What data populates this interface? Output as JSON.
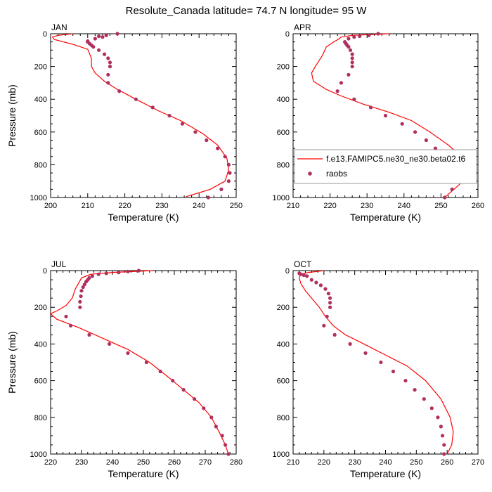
{
  "title": "Resolute_Canada  latitude= 74.7 N longitude= 95 W",
  "colors": {
    "model": "#ff0000",
    "obs": "#b03060"
  },
  "chart_data": [
    {
      "type": "line",
      "panel_label": "JAN",
      "xlabel": "Temperature (K)",
      "ylabel": "Pressure (mb)",
      "xlim": [
        200,
        250
      ],
      "xticks": [
        200,
        210,
        220,
        230,
        240,
        250
      ],
      "ylim": [
        0,
        1000
      ],
      "yticks": [
        0,
        200,
        400,
        600,
        800,
        1000
      ],
      "y_reversed": true,
      "series": [
        {
          "type": "line",
          "points": [
            [
              206,
              0
            ],
            [
              202,
              10
            ],
            [
              200.5,
              20
            ],
            [
              201,
              35
            ],
            [
              206,
              65
            ],
            [
              210,
              95
            ],
            [
              211,
              150
            ],
            [
              211,
              200
            ],
            [
              212,
              240
            ],
            [
              214.5,
              290
            ],
            [
              218,
              340
            ],
            [
              223,
              400
            ],
            [
              229,
              470
            ],
            [
              235,
              530
            ],
            [
              241,
              610
            ],
            [
              245,
              680
            ],
            [
              247.5,
              760
            ],
            [
              248,
              830
            ],
            [
              247,
              900
            ],
            [
              243,
              950
            ],
            [
              236.5,
              995
            ]
          ]
        },
        {
          "type": "scatter",
          "points": [
            [
              218,
              0
            ],
            [
              215,
              10
            ],
            [
              213,
              15
            ],
            [
              214,
              20
            ],
            [
              212,
              30
            ],
            [
              210,
              50
            ],
            [
              210,
              45
            ],
            [
              210.5,
              60
            ],
            [
              211,
              70
            ],
            [
              211.5,
              80
            ],
            [
              213,
              100
            ],
            [
              214.5,
              125
            ],
            [
              215.5,
              150
            ],
            [
              216,
              175
            ],
            [
              216,
              200
            ],
            [
              215.5,
              250
            ],
            [
              215.5,
              300
            ],
            [
              218.5,
              350
            ],
            [
              223,
              400
            ],
            [
              227.5,
              450
            ],
            [
              232,
              500
            ],
            [
              235.5,
              550
            ],
            [
              239,
              600
            ],
            [
              242,
              650
            ],
            [
              245,
              700
            ],
            [
              247,
              750
            ],
            [
              248,
              800
            ],
            [
              248.3,
              850
            ],
            [
              248,
              900
            ],
            [
              246,
              950
            ],
            [
              242.5,
              1000
            ]
          ]
        }
      ]
    },
    {
      "type": "line",
      "panel_label": "APR",
      "xlabel": "Temperature (K)",
      "ylabel": "",
      "xlim": [
        210,
        260
      ],
      "xticks": [
        210,
        220,
        230,
        240,
        250,
        260
      ],
      "ylim": [
        0,
        1000
      ],
      "yticks": [
        0,
        200,
        400,
        600,
        800,
        1000
      ],
      "y_reversed": true,
      "legend": {
        "model_label": "f.e13.FAMIPC5.ne30_ne30.beta02.t6",
        "obs_label": "raobs",
        "placement": "lower-right"
      },
      "series": [
        {
          "type": "line",
          "points": [
            [
              236,
              0
            ],
            [
              226,
              10
            ],
            [
              223,
              20
            ],
            [
              222.5,
              30
            ],
            [
              221,
              50
            ],
            [
              219,
              80
            ],
            [
              218,
              130
            ],
            [
              216,
              200
            ],
            [
              215,
              240
            ],
            [
              215.5,
              290
            ],
            [
              219,
              340
            ],
            [
              223,
              380
            ],
            [
              229,
              430
            ],
            [
              236,
              480
            ],
            [
              242,
              530
            ],
            [
              247,
              600
            ],
            [
              252,
              680
            ],
            [
              255,
              740
            ],
            [
              257,
              800
            ],
            [
              257,
              850
            ],
            [
              255,
              920
            ],
            [
              252,
              980
            ],
            [
              251,
              1000
            ]
          ]
        },
        {
          "type": "scatter",
          "points": [
            [
              233,
              0
            ],
            [
              230.5,
              10
            ],
            [
              228,
              15
            ],
            [
              226.5,
              20
            ],
            [
              225,
              30
            ],
            [
              224,
              50
            ],
            [
              224.3,
              60
            ],
            [
              224.6,
              70
            ],
            [
              225,
              80
            ],
            [
              225.5,
              100
            ],
            [
              226,
              125
            ],
            [
              226,
              150
            ],
            [
              226,
              175
            ],
            [
              226,
              200
            ],
            [
              225,
              250
            ],
            [
              223,
              300
            ],
            [
              222,
              350
            ],
            [
              226.5,
              400
            ],
            [
              231,
              450
            ],
            [
              235,
              500
            ],
            [
              239.5,
              550
            ],
            [
              243,
              600
            ],
            [
              246,
              650
            ],
            [
              248.5,
              700
            ],
            [
              250.5,
              750
            ],
            [
              252,
              800
            ],
            [
              253.5,
              850
            ],
            [
              254,
              900
            ],
            [
              253,
              950
            ],
            [
              251,
              1000
            ]
          ]
        }
      ]
    },
    {
      "type": "line",
      "panel_label": "JUL",
      "xlabel": "Temperature (K)",
      "ylabel": "Pressure (mb)",
      "xlim": [
        220,
        280
      ],
      "xticks": [
        220,
        230,
        240,
        250,
        260,
        270,
        280
      ],
      "ylim": [
        0,
        1000
      ],
      "yticks": [
        0,
        200,
        400,
        600,
        800,
        1000
      ],
      "y_reversed": true,
      "series": [
        {
          "type": "line",
          "points": [
            [
              253,
              0
            ],
            [
              240,
              10
            ],
            [
              233,
              20
            ],
            [
              230,
              40
            ],
            [
              229,
              70
            ],
            [
              228,
              100
            ],
            [
              227,
              150
            ],
            [
              225,
              190
            ],
            [
              222,
              220
            ],
            [
              220,
              235
            ],
            [
              222,
              265
            ],
            [
              229,
              310
            ],
            [
              237,
              370
            ],
            [
              245,
              430
            ],
            [
              252,
              500
            ],
            [
              258,
              580
            ],
            [
              263,
              650
            ],
            [
              268,
              720
            ],
            [
              272,
              800
            ],
            [
              274.5,
              880
            ],
            [
              276.5,
              950
            ],
            [
              277.5,
              1000
            ]
          ]
        },
        {
          "type": "scatter",
          "points": [
            [
              248.5,
              0
            ],
            [
              245,
              5
            ],
            [
              242,
              10
            ],
            [
              238,
              15
            ],
            [
              235.5,
              20
            ],
            [
              233.5,
              30
            ],
            [
              232.5,
              40
            ],
            [
              232,
              50
            ],
            [
              231.5,
              60
            ],
            [
              231,
              75
            ],
            [
              230.5,
              90
            ],
            [
              230,
              110
            ],
            [
              229.8,
              140
            ],
            [
              229.5,
              170
            ],
            [
              229.5,
              200
            ],
            [
              225,
              250
            ],
            [
              226.5,
              300
            ],
            [
              232.5,
              350
            ],
            [
              239,
              400
            ],
            [
              245,
              450
            ],
            [
              251,
              500
            ],
            [
              255.5,
              550
            ],
            [
              259.5,
              600
            ],
            [
              263,
              650
            ],
            [
              266.5,
              700
            ],
            [
              269.5,
              750
            ],
            [
              272,
              800
            ],
            [
              273.5,
              850
            ],
            [
              275.5,
              900
            ],
            [
              276.5,
              950
            ],
            [
              277.5,
              1000
            ]
          ]
        }
      ]
    },
    {
      "type": "line",
      "panel_label": "OCT",
      "xlabel": "Temperature (K)",
      "ylabel": "",
      "xlim": [
        210,
        270
      ],
      "xticks": [
        210,
        220,
        230,
        240,
        250,
        260,
        270
      ],
      "ylim": [
        0,
        1000
      ],
      "yticks": [
        0,
        200,
        400,
        600,
        800,
        1000
      ],
      "y_reversed": true,
      "series": [
        {
          "type": "line",
          "points": [
            [
              220,
              0
            ],
            [
              215,
              10
            ],
            [
              212.5,
              20
            ],
            [
              212,
              40
            ],
            [
              212.5,
              70
            ],
            [
              214,
              110
            ],
            [
              216,
              150
            ],
            [
              218.5,
              200
            ],
            [
              220.5,
              250
            ],
            [
              223,
              300
            ],
            [
              227,
              350
            ],
            [
              233,
              400
            ],
            [
              240,
              460
            ],
            [
              247,
              520
            ],
            [
              253,
              600
            ],
            [
              258,
              700
            ],
            [
              261,
              800
            ],
            [
              262,
              880
            ],
            [
              261.5,
              950
            ],
            [
              260,
              1000
            ]
          ]
        },
        {
          "type": "scatter",
          "points": [
            [
              212,
              15
            ],
            [
              212.5,
              20
            ],
            [
              213.5,
              25
            ],
            [
              214.5,
              30
            ],
            [
              216,
              50
            ],
            [
              217.5,
              65
            ],
            [
              219,
              80
            ],
            [
              220.5,
              100
            ],
            [
              221.5,
              125
            ],
            [
              222,
              150
            ],
            [
              222,
              175
            ],
            [
              222,
              200
            ],
            [
              221,
              250
            ],
            [
              220,
              300
            ],
            [
              223.5,
              350
            ],
            [
              228.5,
              400
            ],
            [
              233.5,
              450
            ],
            [
              238.5,
              500
            ],
            [
              242.5,
              550
            ],
            [
              246.5,
              600
            ],
            [
              249.5,
              650
            ],
            [
              252.5,
              700
            ],
            [
              255,
              750
            ],
            [
              257,
              800
            ],
            [
              258,
              850
            ],
            [
              258.5,
              900
            ],
            [
              259,
              950
            ],
            [
              259,
              1000
            ]
          ]
        }
      ]
    }
  ]
}
